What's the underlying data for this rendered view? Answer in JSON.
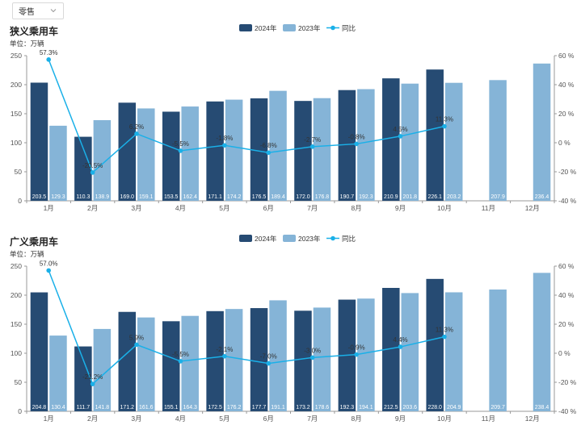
{
  "filter": {
    "selected": "零售"
  },
  "colors": {
    "current": "#264b73",
    "previous": "#85b4d7",
    "yoy": "#1ab0e8",
    "axis": "#555555",
    "grid": "#eeeeee",
    "label_dark": "#ffffff"
  },
  "chart_data": [
    {
      "type": "bar",
      "title": "狭义乘用车",
      "unit": "单位：万辆",
      "categories": [
        "1月",
        "2月",
        "3月",
        "4月",
        "5月",
        "6月",
        "7月",
        "8月",
        "9月",
        "10月",
        "11月",
        "12月"
      ],
      "series": [
        {
          "name": "2024年",
          "type": "bar",
          "axis": "left",
          "values": [
            203.5,
            110.3,
            169.0,
            153.5,
            171.1,
            176.5,
            172.0,
            190.7,
            210.9,
            226.1,
            null,
            null
          ]
        },
        {
          "name": "2023年",
          "type": "bar",
          "axis": "left",
          "values": [
            129.3,
            138.9,
            159.1,
            162.4,
            174.2,
            189.4,
            176.8,
            192.3,
            201.8,
            203.2,
            207.9,
            236.4
          ]
        },
        {
          "name": "同比",
          "type": "line",
          "axis": "right",
          "values": [
            57.3,
            -20.5,
            6.2,
            -5.5,
            -1.8,
            -6.8,
            -2.7,
            -0.8,
            4.5,
            11.3,
            null,
            null
          ],
          "labels": [
            "57.3%",
            "-20.5%",
            "6.2%",
            "-5.5%",
            "-1.8%",
            "-6.8%",
            "-2.7%",
            "-0.8%",
            "4.5%",
            "11.3%",
            "",
            ""
          ]
        }
      ],
      "ylim": [
        0,
        250
      ],
      "yticks": [
        "0",
        "50",
        "100",
        "150",
        "200",
        "250"
      ],
      "y2lim": [
        -40,
        60
      ],
      "y2ticks": [
        "-40 %",
        "-20 %",
        "0 %",
        "20 %",
        "40 %",
        "60 %"
      ],
      "legend": "top-center",
      "grid": false
    },
    {
      "type": "bar",
      "title": "广义乘用车",
      "unit": "单位：万辆",
      "categories": [
        "1月",
        "2月",
        "3月",
        "4月",
        "5月",
        "6月",
        "7月",
        "8月",
        "9月",
        "10月",
        "11月",
        "12月"
      ],
      "series": [
        {
          "name": "2024年",
          "type": "bar",
          "axis": "left",
          "values": [
            204.8,
            111.7,
            171.2,
            155.1,
            172.5,
            177.7,
            173.2,
            192.3,
            212.5,
            228.0,
            null,
            null
          ]
        },
        {
          "name": "2023年",
          "type": "bar",
          "axis": "left",
          "values": [
            130.4,
            141.8,
            161.6,
            164.3,
            176.2,
            191.1,
            178.6,
            194.1,
            203.6,
            204.9,
            209.7,
            238.4
          ]
        },
        {
          "name": "同比",
          "type": "line",
          "axis": "right",
          "values": [
            57.0,
            -21.2,
            5.9,
            -5.5,
            -2.1,
            -7.0,
            -3.0,
            -0.9,
            4.4,
            11.3,
            null,
            null
          ],
          "labels": [
            "57.0%",
            "-21.2%",
            "5.9%",
            "-5.5%",
            "-2.1%",
            "-7.0%",
            "-3.0%",
            "-0.9%",
            "4.4%",
            "11.3%",
            "",
            ""
          ]
        }
      ],
      "ylim": [
        0,
        250
      ],
      "yticks": [
        "0",
        "50",
        "100",
        "150",
        "200",
        "250"
      ],
      "y2lim": [
        -40,
        60
      ],
      "y2ticks": [
        "-40 %",
        "-20 %",
        "0 %",
        "20 %",
        "40 %",
        "60 %"
      ],
      "legend": "top-center",
      "grid": false
    }
  ]
}
